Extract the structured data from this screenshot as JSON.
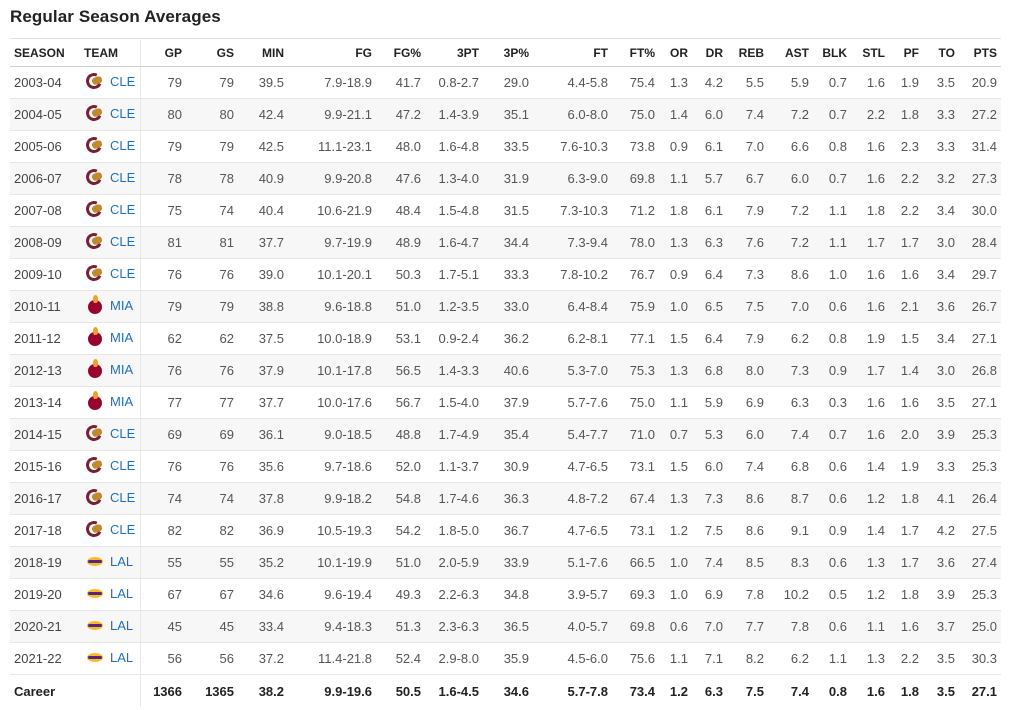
{
  "title": "Regular Season Averages",
  "columns": [
    "SEASON",
    "TEAM",
    "GP",
    "GS",
    "MIN",
    "FG",
    "FG%",
    "3PT",
    "3P%",
    "FT",
    "FT%",
    "OR",
    "DR",
    "REB",
    "AST",
    "BLK",
    "STL",
    "PF",
    "TO",
    "PTS"
  ],
  "teams": {
    "CLE": {
      "icon": "cavaliers-logo-icon",
      "color": "#7a1f33"
    },
    "MIA": {
      "icon": "heat-logo-icon",
      "color": "#98002e"
    },
    "LAL": {
      "icon": "lakers-logo-icon",
      "color": "#fdb927"
    }
  },
  "link_color": "#1e6fbf",
  "rows": [
    {
      "season": "2003-04",
      "team": "CLE",
      "gp": "79",
      "gs": "79",
      "min": "39.5",
      "fg": "7.9-18.9",
      "fgp": "41.7",
      "tpt": "0.8-2.7",
      "tpp": "29.0",
      "ft": "4.4-5.8",
      "ftp": "75.4",
      "or": "1.3",
      "dr": "4.2",
      "reb": "5.5",
      "ast": "5.9",
      "blk": "0.7",
      "stl": "1.6",
      "pf": "1.9",
      "to": "3.5",
      "pts": "20.9"
    },
    {
      "season": "2004-05",
      "team": "CLE",
      "gp": "80",
      "gs": "80",
      "min": "42.4",
      "fg": "9.9-21.1",
      "fgp": "47.2",
      "tpt": "1.4-3.9",
      "tpp": "35.1",
      "ft": "6.0-8.0",
      "ftp": "75.0",
      "or": "1.4",
      "dr": "6.0",
      "reb": "7.4",
      "ast": "7.2",
      "blk": "0.7",
      "stl": "2.2",
      "pf": "1.8",
      "to": "3.3",
      "pts": "27.2"
    },
    {
      "season": "2005-06",
      "team": "CLE",
      "gp": "79",
      "gs": "79",
      "min": "42.5",
      "fg": "11.1-23.1",
      "fgp": "48.0",
      "tpt": "1.6-4.8",
      "tpp": "33.5",
      "ft": "7.6-10.3",
      "ftp": "73.8",
      "or": "0.9",
      "dr": "6.1",
      "reb": "7.0",
      "ast": "6.6",
      "blk": "0.8",
      "stl": "1.6",
      "pf": "2.3",
      "to": "3.3",
      "pts": "31.4"
    },
    {
      "season": "2006-07",
      "team": "CLE",
      "gp": "78",
      "gs": "78",
      "min": "40.9",
      "fg": "9.9-20.8",
      "fgp": "47.6",
      "tpt": "1.3-4.0",
      "tpp": "31.9",
      "ft": "6.3-9.0",
      "ftp": "69.8",
      "or": "1.1",
      "dr": "5.7",
      "reb": "6.7",
      "ast": "6.0",
      "blk": "0.7",
      "stl": "1.6",
      "pf": "2.2",
      "to": "3.2",
      "pts": "27.3"
    },
    {
      "season": "2007-08",
      "team": "CLE",
      "gp": "75",
      "gs": "74",
      "min": "40.4",
      "fg": "10.6-21.9",
      "fgp": "48.4",
      "tpt": "1.5-4.8",
      "tpp": "31.5",
      "ft": "7.3-10.3",
      "ftp": "71.2",
      "or": "1.8",
      "dr": "6.1",
      "reb": "7.9",
      "ast": "7.2",
      "blk": "1.1",
      "stl": "1.8",
      "pf": "2.2",
      "to": "3.4",
      "pts": "30.0"
    },
    {
      "season": "2008-09",
      "team": "CLE",
      "gp": "81",
      "gs": "81",
      "min": "37.7",
      "fg": "9.7-19.9",
      "fgp": "48.9",
      "tpt": "1.6-4.7",
      "tpp": "34.4",
      "ft": "7.3-9.4",
      "ftp": "78.0",
      "or": "1.3",
      "dr": "6.3",
      "reb": "7.6",
      "ast": "7.2",
      "blk": "1.1",
      "stl": "1.7",
      "pf": "1.7",
      "to": "3.0",
      "pts": "28.4"
    },
    {
      "season": "2009-10",
      "team": "CLE",
      "gp": "76",
      "gs": "76",
      "min": "39.0",
      "fg": "10.1-20.1",
      "fgp": "50.3",
      "tpt": "1.7-5.1",
      "tpp": "33.3",
      "ft": "7.8-10.2",
      "ftp": "76.7",
      "or": "0.9",
      "dr": "6.4",
      "reb": "7.3",
      "ast": "8.6",
      "blk": "1.0",
      "stl": "1.6",
      "pf": "1.6",
      "to": "3.4",
      "pts": "29.7"
    },
    {
      "season": "2010-11",
      "team": "MIA",
      "gp": "79",
      "gs": "79",
      "min": "38.8",
      "fg": "9.6-18.8",
      "fgp": "51.0",
      "tpt": "1.2-3.5",
      "tpp": "33.0",
      "ft": "6.4-8.4",
      "ftp": "75.9",
      "or": "1.0",
      "dr": "6.5",
      "reb": "7.5",
      "ast": "7.0",
      "blk": "0.6",
      "stl": "1.6",
      "pf": "2.1",
      "to": "3.6",
      "pts": "26.7"
    },
    {
      "season": "2011-12",
      "team": "MIA",
      "gp": "62",
      "gs": "62",
      "min": "37.5",
      "fg": "10.0-18.9",
      "fgp": "53.1",
      "tpt": "0.9-2.4",
      "tpp": "36.2",
      "ft": "6.2-8.1",
      "ftp": "77.1",
      "or": "1.5",
      "dr": "6.4",
      "reb": "7.9",
      "ast": "6.2",
      "blk": "0.8",
      "stl": "1.9",
      "pf": "1.5",
      "to": "3.4",
      "pts": "27.1"
    },
    {
      "season": "2012-13",
      "team": "MIA",
      "gp": "76",
      "gs": "76",
      "min": "37.9",
      "fg": "10.1-17.8",
      "fgp": "56.5",
      "tpt": "1.4-3.3",
      "tpp": "40.6",
      "ft": "5.3-7.0",
      "ftp": "75.3",
      "or": "1.3",
      "dr": "6.8",
      "reb": "8.0",
      "ast": "7.3",
      "blk": "0.9",
      "stl": "1.7",
      "pf": "1.4",
      "to": "3.0",
      "pts": "26.8"
    },
    {
      "season": "2013-14",
      "team": "MIA",
      "gp": "77",
      "gs": "77",
      "min": "37.7",
      "fg": "10.0-17.6",
      "fgp": "56.7",
      "tpt": "1.5-4.0",
      "tpp": "37.9",
      "ft": "5.7-7.6",
      "ftp": "75.0",
      "or": "1.1",
      "dr": "5.9",
      "reb": "6.9",
      "ast": "6.3",
      "blk": "0.3",
      "stl": "1.6",
      "pf": "1.6",
      "to": "3.5",
      "pts": "27.1"
    },
    {
      "season": "2014-15",
      "team": "CLE",
      "gp": "69",
      "gs": "69",
      "min": "36.1",
      "fg": "9.0-18.5",
      "fgp": "48.8",
      "tpt": "1.7-4.9",
      "tpp": "35.4",
      "ft": "5.4-7.7",
      "ftp": "71.0",
      "or": "0.7",
      "dr": "5.3",
      "reb": "6.0",
      "ast": "7.4",
      "blk": "0.7",
      "stl": "1.6",
      "pf": "2.0",
      "to": "3.9",
      "pts": "25.3"
    },
    {
      "season": "2015-16",
      "team": "CLE",
      "gp": "76",
      "gs": "76",
      "min": "35.6",
      "fg": "9.7-18.6",
      "fgp": "52.0",
      "tpt": "1.1-3.7",
      "tpp": "30.9",
      "ft": "4.7-6.5",
      "ftp": "73.1",
      "or": "1.5",
      "dr": "6.0",
      "reb": "7.4",
      "ast": "6.8",
      "blk": "0.6",
      "stl": "1.4",
      "pf": "1.9",
      "to": "3.3",
      "pts": "25.3"
    },
    {
      "season": "2016-17",
      "team": "CLE",
      "gp": "74",
      "gs": "74",
      "min": "37.8",
      "fg": "9.9-18.2",
      "fgp": "54.8",
      "tpt": "1.7-4.6",
      "tpp": "36.3",
      "ft": "4.8-7.2",
      "ftp": "67.4",
      "or": "1.3",
      "dr": "7.3",
      "reb": "8.6",
      "ast": "8.7",
      "blk": "0.6",
      "stl": "1.2",
      "pf": "1.8",
      "to": "4.1",
      "pts": "26.4"
    },
    {
      "season": "2017-18",
      "team": "CLE",
      "gp": "82",
      "gs": "82",
      "min": "36.9",
      "fg": "10.5-19.3",
      "fgp": "54.2",
      "tpt": "1.8-5.0",
      "tpp": "36.7",
      "ft": "4.7-6.5",
      "ftp": "73.1",
      "or": "1.2",
      "dr": "7.5",
      "reb": "8.6",
      "ast": "9.1",
      "blk": "0.9",
      "stl": "1.4",
      "pf": "1.7",
      "to": "4.2",
      "pts": "27.5"
    },
    {
      "season": "2018-19",
      "team": "LAL",
      "gp": "55",
      "gs": "55",
      "min": "35.2",
      "fg": "10.1-19.9",
      "fgp": "51.0",
      "tpt": "2.0-5.9",
      "tpp": "33.9",
      "ft": "5.1-7.6",
      "ftp": "66.5",
      "or": "1.0",
      "dr": "7.4",
      "reb": "8.5",
      "ast": "8.3",
      "blk": "0.6",
      "stl": "1.3",
      "pf": "1.7",
      "to": "3.6",
      "pts": "27.4"
    },
    {
      "season": "2019-20",
      "team": "LAL",
      "gp": "67",
      "gs": "67",
      "min": "34.6",
      "fg": "9.6-19.4",
      "fgp": "49.3",
      "tpt": "2.2-6.3",
      "tpp": "34.8",
      "ft": "3.9-5.7",
      "ftp": "69.3",
      "or": "1.0",
      "dr": "6.9",
      "reb": "7.8",
      "ast": "10.2",
      "blk": "0.5",
      "stl": "1.2",
      "pf": "1.8",
      "to": "3.9",
      "pts": "25.3"
    },
    {
      "season": "2020-21",
      "team": "LAL",
      "gp": "45",
      "gs": "45",
      "min": "33.4",
      "fg": "9.4-18.3",
      "fgp": "51.3",
      "tpt": "2.3-6.3",
      "tpp": "36.5",
      "ft": "4.0-5.7",
      "ftp": "69.8",
      "or": "0.6",
      "dr": "7.0",
      "reb": "7.7",
      "ast": "7.8",
      "blk": "0.6",
      "stl": "1.1",
      "pf": "1.6",
      "to": "3.7",
      "pts": "25.0"
    },
    {
      "season": "2021-22",
      "team": "LAL",
      "gp": "56",
      "gs": "56",
      "min": "37.2",
      "fg": "11.4-21.8",
      "fgp": "52.4",
      "tpt": "2.9-8.0",
      "tpp": "35.9",
      "ft": "4.5-6.0",
      "ftp": "75.6",
      "or": "1.1",
      "dr": "7.1",
      "reb": "8.2",
      "ast": "6.2",
      "blk": "1.1",
      "stl": "1.3",
      "pf": "2.2",
      "to": "3.5",
      "pts": "30.3"
    }
  ],
  "career": {
    "label": "Career",
    "gp": "1366",
    "gs": "1365",
    "min": "38.2",
    "fg": "9.9-19.6",
    "fgp": "50.5",
    "tpt": "1.6-4.5",
    "tpp": "34.6",
    "ft": "5.7-7.8",
    "ftp": "73.4",
    "or": "1.2",
    "dr": "6.3",
    "reb": "7.5",
    "ast": "7.4",
    "blk": "0.8",
    "stl": "1.6",
    "pf": "1.8",
    "to": "3.5",
    "pts": "27.1"
  }
}
